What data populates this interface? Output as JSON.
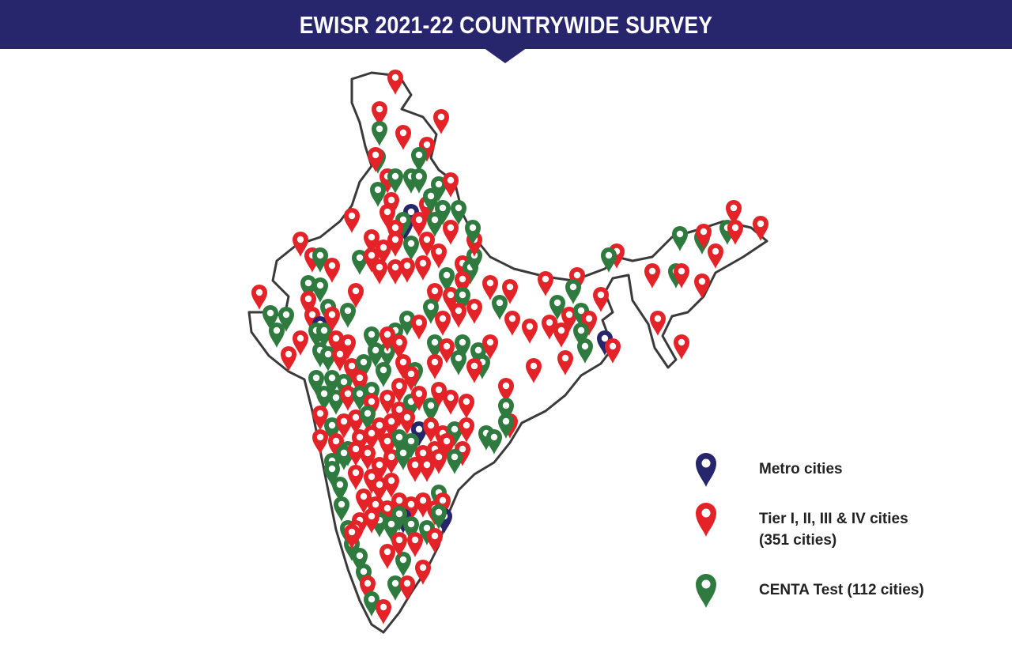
{
  "header": {
    "title": "EWISR 2021-22 COUNTRYWIDE SURVEY"
  },
  "colors": {
    "header_bg": "#27256b",
    "metro": "#27256b",
    "tier": "#e32328",
    "centa": "#2f7a3e",
    "outline": "#3a3a3a"
  },
  "legend": {
    "items": [
      {
        "label": "Metro cities",
        "sub": "",
        "color": "#27256b",
        "icon": "map-pin-icon"
      },
      {
        "label": "Tier I, II, III & IV cities",
        "sub": "(351 cities)",
        "color": "#e32328",
        "icon": "map-pin-icon"
      },
      {
        "label": "CENTA Test (112 cities)",
        "sub": "",
        "color": "#2f7a3e",
        "icon": "map-pin-icon"
      }
    ]
  }
}
